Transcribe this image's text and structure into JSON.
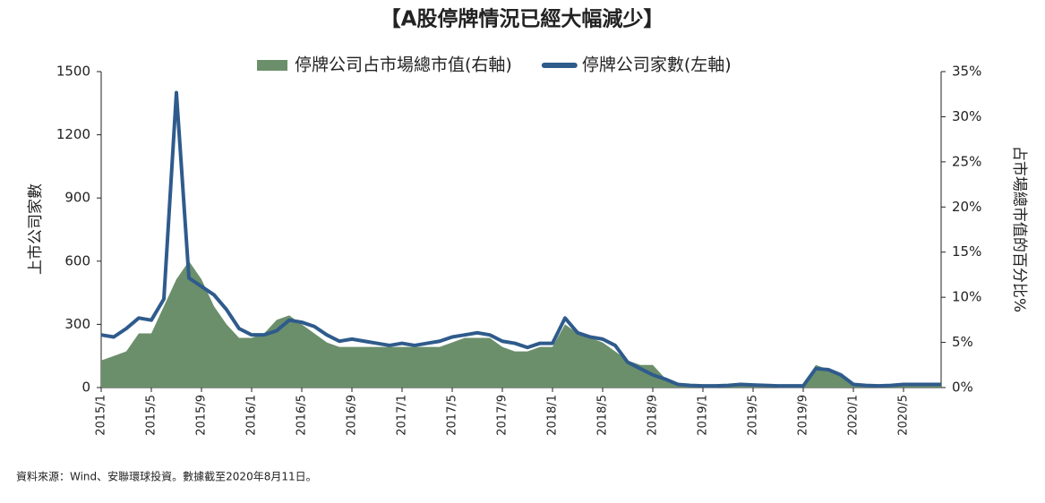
{
  "chart_data": {
    "type": "line",
    "title": "【A股停牌情況已經大幅減少】",
    "ylabel": "上市公司家數",
    "y2label": "占市場總市值的百分比%",
    "source": "資料來源：Wind、安聯環球投資。數據截至2020年8月11日。",
    "categories": [
      "2015/1",
      null,
      null,
      null,
      "2015/5",
      null,
      null,
      null,
      "2015/9",
      null,
      null,
      null,
      "2016/1",
      null,
      null,
      null,
      "2016/5",
      null,
      null,
      null,
      "2016/9",
      null,
      null,
      null,
      "2017/1",
      null,
      null,
      null,
      "2017/5",
      null,
      null,
      null,
      "2017/9",
      null,
      null,
      null,
      "2018/1",
      null,
      null,
      null,
      "2018/5",
      null,
      null,
      null,
      "2018/9",
      null,
      null,
      null,
      "2019/1",
      null,
      null,
      null,
      "2019/5",
      null,
      null,
      null,
      "2019/9",
      null,
      null,
      null,
      "2020/1",
      null,
      null,
      null,
      "2020/5",
      null,
      null,
      null
    ],
    "ylim": [
      0,
      1500
    ],
    "yticks": [
      0,
      300,
      600,
      900,
      1200,
      1500
    ],
    "y2lim": [
      0,
      35
    ],
    "y2ticks": [
      {
        "value": 0,
        "label": "0%"
      },
      {
        "value": 5,
        "label": "5%"
      },
      {
        "value": 10,
        "label": "10%"
      },
      {
        "value": 15,
        "label": "15%"
      },
      {
        "value": 20,
        "label": "20%"
      },
      {
        "value": 25,
        "label": "25%"
      },
      {
        "value": 30,
        "label": "30%"
      },
      {
        "value": 35,
        "label": "35%"
      }
    ],
    "series": [
      {
        "name": "停牌公司占市場總市值(右軸)",
        "type": "area",
        "axis": "y2",
        "color": "#6b8f6b",
        "values": [
          3,
          3.5,
          4,
          6,
          6,
          9,
          12,
          14,
          12,
          9,
          7,
          5.5,
          5.5,
          6,
          7.5,
          8,
          7,
          6,
          5,
          4.5,
          4.5,
          4.5,
          4.5,
          4.5,
          4.5,
          4.5,
          4.5,
          4.5,
          5,
          5.5,
          5.5,
          5.5,
          4.5,
          4,
          4,
          4.5,
          4.5,
          7,
          6,
          5.5,
          5,
          4,
          3,
          2.5,
          2.5,
          1,
          0.3,
          0.2,
          0.1,
          0.1,
          0.2,
          0.3,
          0.3,
          0.2,
          0.2,
          0.2,
          0.2,
          2.5,
          2,
          1.2,
          0.2,
          0.1,
          0.1,
          0.2,
          0.3,
          0.4,
          0.4,
          0.3
        ]
      },
      {
        "name": "停牌公司家數(左軸)",
        "type": "line",
        "color": "#2f5b8c",
        "values": [
          250,
          240,
          280,
          330,
          320,
          420,
          1400,
          520,
          480,
          440,
          370,
          280,
          250,
          250,
          270,
          320,
          310,
          290,
          250,
          220,
          230,
          220,
          210,
          200,
          210,
          200,
          210,
          220,
          240,
          250,
          260,
          250,
          220,
          210,
          190,
          210,
          210,
          330,
          260,
          240,
          230,
          200,
          120,
          90,
          60,
          40,
          15,
          10,
          8,
          8,
          10,
          15,
          12,
          10,
          8,
          8,
          8,
          90,
          85,
          60,
          15,
          10,
          8,
          10,
          15,
          15,
          15,
          15
        ]
      }
    ]
  }
}
